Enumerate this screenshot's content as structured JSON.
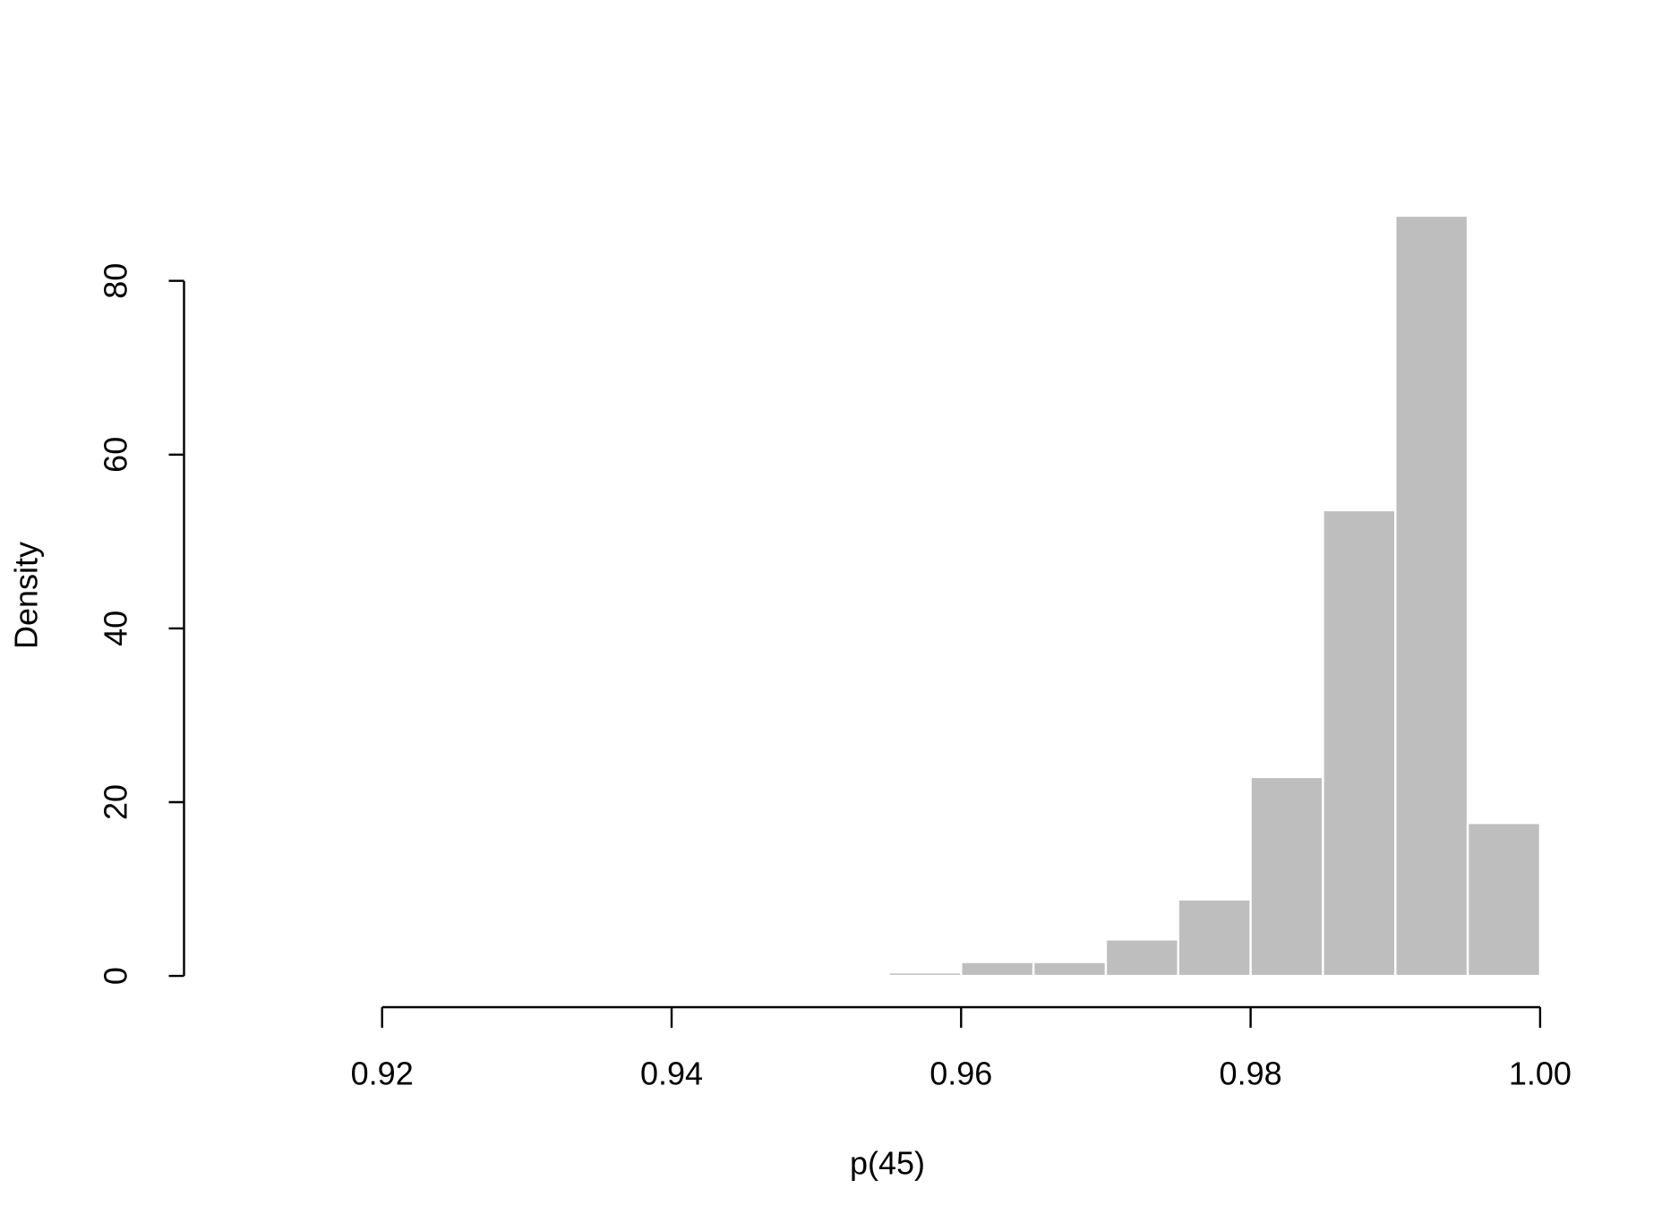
{
  "chart_data": {
    "type": "histogram",
    "x_label": "p(45)",
    "y_label": "Density",
    "bins": [
      0.935,
      0.94,
      0.945,
      0.95,
      0.955,
      0.96,
      0.965,
      0.97,
      0.975,
      0.98,
      0.985,
      0.99,
      0.995,
      1.0
    ],
    "values": [
      0.2,
      0,
      0,
      0,
      0.4,
      1.6,
      1.6,
      4.2,
      8.8,
      22.9,
      53.6,
      87.5,
      17.6
    ],
    "color": "#bebebe",
    "xlim": [
      0.92,
      1.0
    ],
    "xticks": [
      0.92,
      0.94,
      0.96,
      0.98,
      {
        "value": 1.0,
        "label": "1.00"
      }
    ],
    "ylim": [
      0,
      80
    ],
    "yticks": [
      0,
      20,
      40,
      60,
      80
    ]
  }
}
